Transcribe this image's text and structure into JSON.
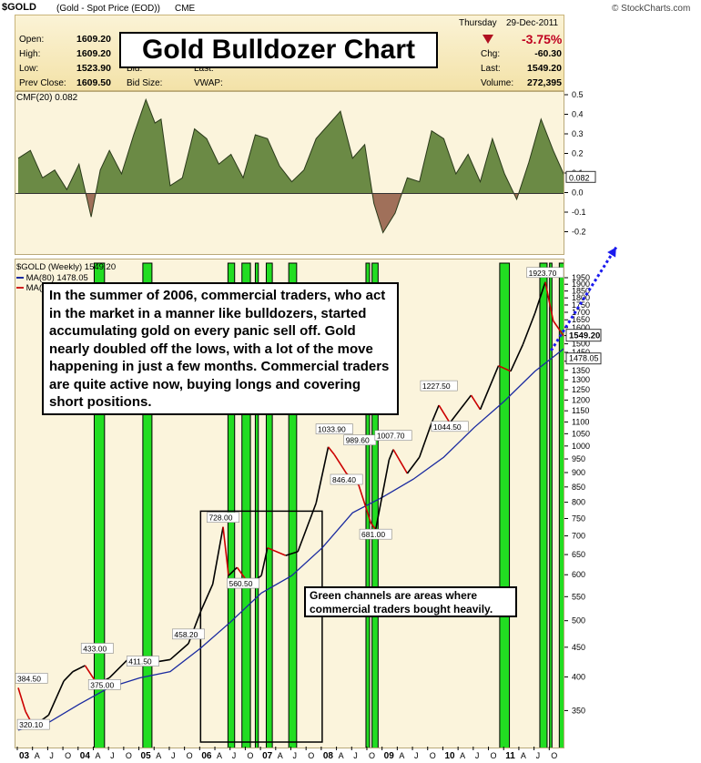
{
  "header": {
    "symbol": "$GOLD",
    "description": "(Gold - Spot Price (EOD))",
    "exchange": "CME",
    "brand": "© StockCharts.com",
    "day": "Thursday",
    "date": "29-Dec-2011",
    "change_pct": "-3.75%",
    "left_stats": [
      {
        "label": "Open:",
        "value": "1609.20"
      },
      {
        "label": "High:",
        "value": "1609.20"
      },
      {
        "label": "Low:",
        "value": "1523.90"
      },
      {
        "label": "Prev Close:",
        "value": "1609.50"
      }
    ],
    "mid_labels": [
      "Bid:",
      "Bid Size:"
    ],
    "mid2_labels": [
      "Last:",
      "VWAP:"
    ],
    "right_stats": [
      {
        "label": "Chg:",
        "value": "-60.30"
      },
      {
        "label": "Last:",
        "value": "1549.20"
      },
      {
        "label": "Volume:",
        "value": "272,395"
      }
    ]
  },
  "title_box": "Gold Bulldozer Chart",
  "note_text": "In the summer of 2006, commercial traders, who act in the market in a manner like bulldozers, started accumulating gold on every panic sell off.  Gold nearly doubled off the lows, with a lot of the move happening in just a few months. Commercial traders are quite active now, buying longs and covering short positions.",
  "green_note": "Green channels are areas where commercial traders bought heavily.",
  "colors": {
    "positive_fill": "#6b8a45",
    "negative_fill": "#a0705a",
    "price_up": "#000000",
    "price_down": "#cc0000",
    "ma_line": "#1a2aa0",
    "channel_fill": "#22dd22",
    "arrow": "#1a1aee"
  },
  "chart_data": [
    {
      "type": "area",
      "title": "CMF(20) 0.082",
      "current_label": "0.082",
      "ylim": [
        -0.3,
        0.5
      ],
      "ticks": [
        "0.5",
        "0.4",
        "0.3",
        "0.2",
        "0.1",
        "0.0",
        "-0.1",
        "-0.2"
      ],
      "tick_values": [
        0.5,
        0.4,
        0.3,
        0.2,
        0.1,
        0.0,
        -0.1,
        -0.2
      ],
      "x": [
        2003.0,
        2003.2,
        2003.4,
        2003.6,
        2003.8,
        2004.0,
        2004.2,
        2004.35,
        2004.5,
        2004.7,
        2004.9,
        2005.1,
        2005.25,
        2005.35,
        2005.5,
        2005.7,
        2005.9,
        2006.1,
        2006.3,
        2006.5,
        2006.7,
        2006.9,
        2007.1,
        2007.3,
        2007.5,
        2007.7,
        2007.9,
        2008.1,
        2008.3,
        2008.5,
        2008.7,
        2008.85,
        2009.0,
        2009.2,
        2009.4,
        2009.6,
        2009.8,
        2010.0,
        2010.2,
        2010.4,
        2010.6,
        2010.8,
        2011.0,
        2011.2,
        2011.4,
        2011.6,
        2011.8,
        2012.0
      ],
      "values": [
        0.18,
        0.22,
        0.08,
        0.12,
        0.02,
        0.15,
        -0.12,
        0.12,
        0.22,
        0.1,
        0.3,
        0.48,
        0.36,
        0.38,
        0.04,
        0.08,
        0.33,
        0.28,
        0.15,
        0.2,
        0.08,
        0.3,
        0.28,
        0.14,
        0.06,
        0.12,
        0.28,
        0.35,
        0.42,
        0.18,
        0.25,
        -0.05,
        -0.2,
        -0.1,
        0.08,
        0.06,
        0.32,
        0.28,
        0.1,
        0.2,
        0.06,
        0.28,
        0.1,
        -0.03,
        0.16,
        0.38,
        0.22,
        0.08
      ]
    },
    {
      "type": "line",
      "title": "$GOLD (Weekly) 1549.20",
      "legend": [
        {
          "name": "MA(80) 1478.05"
        },
        {
          "name": "MA("
        }
      ],
      "yscale": "log",
      "ylim": [
        310,
        2000
      ],
      "y_ticks": [
        1950,
        1900,
        1850,
        1800,
        1750,
        1700,
        1650,
        1600,
        1550,
        1500,
        1450,
        1400,
        1350,
        1300,
        1250,
        1200,
        1150,
        1100,
        1050,
        1000,
        950,
        900,
        850,
        800,
        750,
        700,
        650,
        600,
        550,
        500,
        450,
        400,
        350
      ],
      "current_labels": [
        "1549.20",
        "1478.05"
      ],
      "x_tick_labels": [
        "03",
        "A",
        "J",
        "O",
        "04",
        "A",
        "J",
        "O",
        "05",
        "A",
        "J",
        "O",
        "06",
        "A",
        "J",
        "O",
        "07",
        "A",
        "J",
        "O",
        "08",
        "A",
        "J",
        "O",
        "09",
        "A",
        "J",
        "O",
        "10",
        "A",
        "J",
        "O",
        "11",
        "A",
        "J",
        "O"
      ],
      "x_tick_values": [
        2003.0,
        2003.25,
        2003.5,
        2003.75,
        2004.0,
        2004.25,
        2004.5,
        2004.75,
        2005.0,
        2005.25,
        2005.5,
        2005.75,
        2006.0,
        2006.25,
        2006.5,
        2006.75,
        2007.0,
        2007.25,
        2007.5,
        2007.75,
        2008.0,
        2008.25,
        2008.5,
        2008.75,
        2009.0,
        2009.25,
        2009.5,
        2009.75,
        2010.0,
        2010.25,
        2010.5,
        2010.75,
        2011.0,
        2011.25,
        2011.5,
        2011.75
      ],
      "price": {
        "x": [
          2003.0,
          2003.12,
          2003.25,
          2003.5,
          2003.75,
          2003.9,
          2004.1,
          2004.3,
          2004.5,
          2004.8,
          2005.0,
          2005.2,
          2005.5,
          2005.8,
          2006.0,
          2006.2,
          2006.37,
          2006.46,
          2006.6,
          2006.8,
          2007.0,
          2007.1,
          2007.4,
          2007.6,
          2007.9,
          2008.1,
          2008.2,
          2008.4,
          2008.6,
          2008.8,
          2008.88,
          2009.1,
          2009.17,
          2009.4,
          2009.6,
          2009.8,
          2009.92,
          2010.1,
          2010.45,
          2010.6,
          2010.9,
          2011.1,
          2011.3,
          2011.5,
          2011.67,
          2011.8,
          2011.98
        ],
        "values": [
          384.5,
          350,
          330,
          345,
          395,
          410,
          420,
          390,
          400,
          430,
          433,
          425,
          430,
          458.2,
          520,
          580,
          728,
          600,
          620,
          580,
          600,
          670,
          650,
          660,
          800,
          1000,
          970,
          900,
          860,
          740,
          720,
          950,
          990,
          900,
          960,
          1100,
          1180,
          1100,
          1227.7,
          1160,
          1380,
          1350,
          1500,
          1700,
          1923.7,
          1650,
          1549.2
        ]
      },
      "ma80": {
        "x": [
          2003.0,
          2003.5,
          2004.0,
          2004.5,
          2005.0,
          2005.5,
          2006.0,
          2006.5,
          2007.0,
          2007.5,
          2008.0,
          2008.5,
          2009.0,
          2009.5,
          2010.0,
          2010.5,
          2011.0,
          2011.5,
          2011.98
        ],
        "values": [
          325,
          335,
          360,
          385,
          400,
          410,
          450,
          500,
          560,
          600,
          670,
          770,
          820,
          880,
          960,
          1080,
          1200,
          1350,
          1478.05
        ]
      },
      "annotations": [
        {
          "label": "384.50",
          "x": 2003.0,
          "y": 384.5
        },
        {
          "label": "320.10",
          "x": 2003.25,
          "y": 320.1
        },
        {
          "label": "433.00",
          "x": 2004.3,
          "y": 433
        },
        {
          "label": "375.00",
          "x": 2004.42,
          "y": 375
        },
        {
          "label": "458.20",
          "x": 2005.8,
          "y": 458.2
        },
        {
          "label": "411.50",
          "x": 2005.05,
          "y": 411.5
        },
        {
          "label": "728.00",
          "x": 2006.37,
          "y": 728
        },
        {
          "label": "560.50",
          "x": 2006.7,
          "y": 560.5
        },
        {
          "label": "1033.90",
          "x": 2008.2,
          "y": 1033.9
        },
        {
          "label": "989.60",
          "x": 2008.62,
          "y": 989.6
        },
        {
          "label": "846.40",
          "x": 2008.4,
          "y": 846.4
        },
        {
          "label": "681.00",
          "x": 2008.88,
          "y": 681
        },
        {
          "label": "1007.70",
          "x": 2009.17,
          "y": 1007.7
        },
        {
          "label": "1227.50",
          "x": 2009.92,
          "y": 1227.5
        },
        {
          "label": "1044.50",
          "x": 2010.1,
          "y": 1044.5
        },
        {
          "label": "1923.70",
          "x": 2011.67,
          "y": 1923.7
        }
      ],
      "channels": [
        [
          2004.25,
          2004.42
        ],
        [
          2005.05,
          2005.2
        ],
        [
          2006.45,
          2006.56
        ],
        [
          2006.68,
          2006.82
        ],
        [
          2006.9,
          2006.95
        ],
        [
          2007.08,
          2007.18
        ],
        [
          2007.45,
          2007.58
        ],
        [
          2008.72,
          2008.78
        ],
        [
          2008.82,
          2008.92
        ],
        [
          2010.92,
          2011.08
        ],
        [
          2011.58,
          2011.7
        ],
        [
          2011.74,
          2011.78
        ],
        [
          2011.9,
          2012.0
        ]
      ],
      "box": {
        "x": [
          2006.0,
          2008.0
        ],
        "y": [
          310,
          775
        ]
      },
      "arrow": {
        "x": [
          2011.78,
          2012.85
        ],
        "y": [
          1460,
          2200
        ]
      }
    }
  ]
}
